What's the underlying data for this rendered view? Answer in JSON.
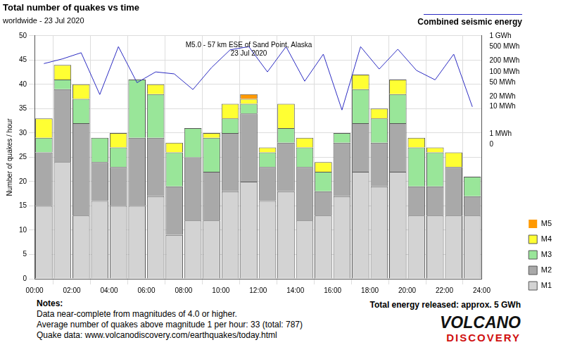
{
  "chart_data": {
    "type": "bar",
    "title": "Total number of quakes vs time",
    "subtitle": "worldwide - 23 Jul 2020",
    "y_label": "Number of quakes / hour",
    "annotation": [
      "M5.0 - 57 km ESE of Sand Point, Alaska",
      "23 Jul 2020"
    ],
    "x": [
      0.5,
      1.5,
      2.5,
      3.5,
      4.5,
      5.5,
      6.5,
      7.5,
      8.5,
      9.5,
      10.5,
      11.5,
      12.5,
      13.5,
      14.5,
      15.5,
      16.5,
      17.5,
      18.5,
      19.5,
      20.5,
      21.5,
      22.5,
      23.5
    ],
    "xlim": [
      0,
      24
    ],
    "xticks": [
      {
        "value": 0,
        "label": "00:00"
      },
      {
        "value": 2,
        "label": "02:00"
      },
      {
        "value": 4,
        "label": "04:00"
      },
      {
        "value": 6,
        "label": "06:00"
      },
      {
        "value": 8,
        "label": "08:00"
      },
      {
        "value": 10,
        "label": "10:00"
      },
      {
        "value": 12,
        "label": "12:00"
      },
      {
        "value": 14,
        "label": "14:00"
      },
      {
        "value": 16,
        "label": "16:00"
      },
      {
        "value": 18,
        "label": "18:00"
      },
      {
        "value": 20,
        "label": "20:00"
      },
      {
        "value": 22,
        "label": "22:00"
      },
      {
        "value": 24,
        "label": "24:00"
      }
    ],
    "ylim": [
      0,
      50
    ],
    "yticks": [
      0,
      5,
      10,
      15,
      20,
      25,
      30,
      35,
      40,
      45,
      50
    ],
    "y2lim": [
      -5000,
      1000
    ],
    "y2ticks": [
      {
        "value": 0,
        "label": "0"
      },
      {
        "value": 1,
        "label": "1 MWh"
      },
      {
        "value": 10,
        "label": "10 MWh"
      },
      {
        "value": 20,
        "label": "20 MWh"
      },
      {
        "value": 50,
        "label": "50 MWh"
      },
      {
        "value": 100,
        "label": "100 MWh"
      },
      {
        "value": 200,
        "label": "200 MWh"
      },
      {
        "value": 500,
        "label": "500 MWh"
      },
      {
        "value": 1000,
        "label": "1 GWh"
      }
    ],
    "stacked": true,
    "grid": true,
    "legend": "right",
    "series": [
      {
        "name": "M1",
        "color": "#d3d3d3",
        "values": [
          15,
          24,
          13,
          16,
          15,
          15,
          17,
          9,
          12,
          12,
          18,
          20,
          16,
          18,
          12,
          13,
          17,
          22,
          19,
          22,
          13,
          13,
          13,
          13
        ]
      },
      {
        "name": "M2",
        "color": "#a9a9a9",
        "values": [
          11,
          15,
          19,
          8,
          8,
          14,
          12,
          10,
          13,
          10,
          12,
          14,
          7,
          10,
          11,
          5,
          11,
          10,
          9,
          10,
          6,
          6,
          10,
          4
        ]
      },
      {
        "name": "M3",
        "color": "#99e699",
        "values": [
          3,
          2,
          5,
          5,
          4,
          12,
          9,
          7,
          6,
          7,
          3,
          2,
          3,
          3,
          4,
          4,
          2,
          7,
          5,
          6,
          8,
          7,
          0,
          4
        ]
      },
      {
        "name": "M4",
        "color": "#ffff33",
        "values": [
          4,
          3,
          3,
          0,
          3,
          0,
          2,
          2,
          0,
          1,
          3,
          1,
          1,
          5,
          2,
          2,
          0,
          3,
          2,
          3,
          2,
          1,
          3,
          0
        ]
      },
      {
        "name": "M5",
        "color": "#ff9900",
        "values": [
          0,
          0,
          0,
          0,
          0,
          0,
          0,
          0,
          0,
          0,
          0,
          1,
          0,
          0,
          0,
          0,
          0,
          0,
          0,
          0,
          0,
          0,
          0,
          0
        ]
      },
      {
        "name": "Combined seismic energy",
        "color": "#2b2bc2",
        "type": "line",
        "axis": "y2",
        "values": [
          170,
          230,
          340,
          23,
          500,
          50,
          100,
          88,
          32,
          132,
          410,
          500,
          100,
          500,
          55,
          310,
          8,
          500,
          120,
          425,
          110,
          60,
          310,
          10
        ]
      }
    ],
    "notes": {
      "heading": "Notes:",
      "lines": [
        "Data near-complete from magnitudes of 4.0 or higher.",
        "Average number of quakes above magnitude 1 per hour: 33 (total: 787)",
        "Quake data: www.volcanodiscovery.com/earthquakes/today.html"
      ]
    },
    "total_energy": "Total energy released: approx. 5 GWh",
    "logo": [
      "VOLCANO",
      "DISCOVERY"
    ]
  }
}
